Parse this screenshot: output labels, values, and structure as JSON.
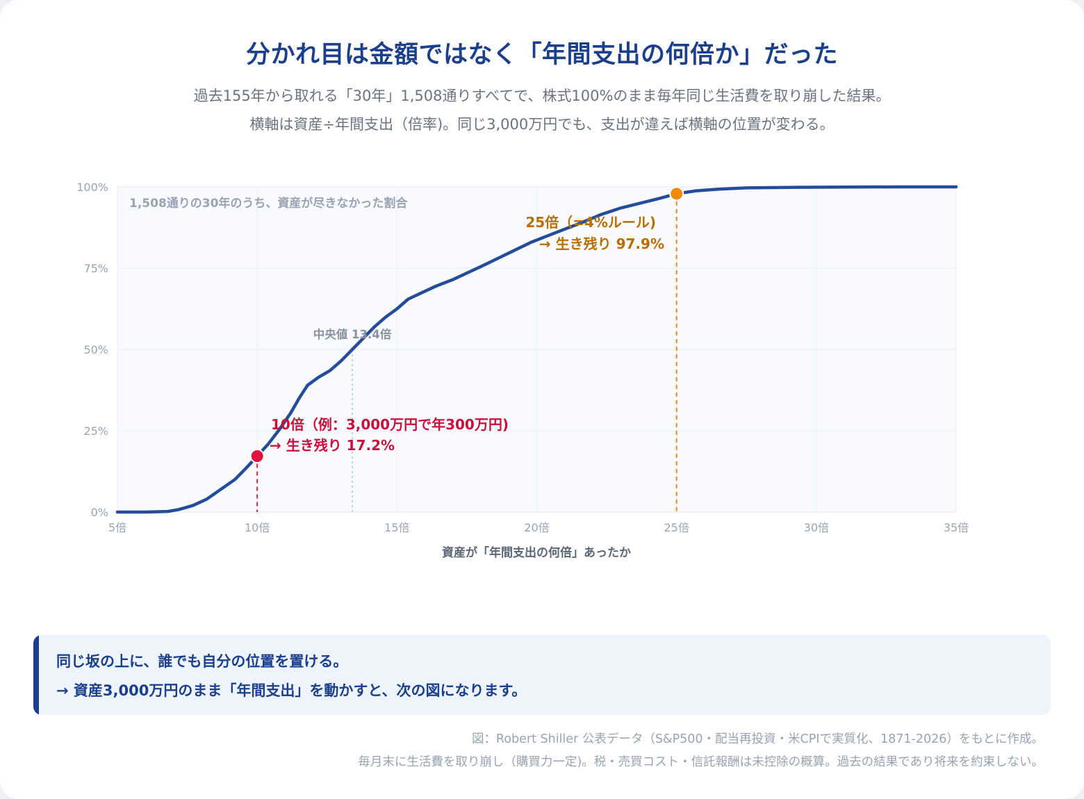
{
  "header": {
    "title": "分かれ目は金額ではなく「年間支出の何倍か」だった",
    "subtitle_line1": "過去155年から取れる「30年」1,508通りすべてで、株式100%のまま毎年同じ生活費を取り崩した結果。",
    "subtitle_line2": "横軸は資産÷年間支出（倍率)。同じ3,000万円でも、支出が違えば横軸の位置が変わる。"
  },
  "chart_data": {
    "type": "line",
    "title": "",
    "inner_label": "1,508通りの30年のうち、資産が尽きなかった割合",
    "xlabel": "資産が「年間支出の何倍」あったか",
    "ylabel": "",
    "xlim": [
      5,
      35
    ],
    "ylim": [
      0,
      100
    ],
    "x_ticks": [
      5,
      10,
      15,
      20,
      25,
      30,
      35
    ],
    "x_tick_labels": [
      "5倍",
      "10倍",
      "15倍",
      "20倍",
      "25倍",
      "30倍",
      "35倍"
    ],
    "y_ticks": [
      0,
      25,
      50,
      75,
      100
    ],
    "y_tick_labels": [
      "0%",
      "25%",
      "50%",
      "75%",
      "100%"
    ],
    "grid": true,
    "series": [
      {
        "color": "#244c9a",
        "points": [
          [
            5,
            0
          ],
          [
            6,
            0
          ],
          [
            6.8,
            0.2
          ],
          [
            7.2,
            0.8
          ],
          [
            7.7,
            2
          ],
          [
            8.2,
            4
          ],
          [
            8.7,
            7
          ],
          [
            9.2,
            10
          ],
          [
            9.6,
            13.5
          ],
          [
            10,
            17.2
          ],
          [
            10.4,
            21
          ],
          [
            10.8,
            25.5
          ],
          [
            11.2,
            30.5
          ],
          [
            11.5,
            35
          ],
          [
            11.8,
            39
          ],
          [
            12.2,
            41.5
          ],
          [
            12.6,
            43.5
          ],
          [
            13,
            46.5
          ],
          [
            13.4,
            50
          ],
          [
            13.8,
            53.5
          ],
          [
            14.2,
            57
          ],
          [
            14.6,
            60
          ],
          [
            15,
            62.5
          ],
          [
            15.4,
            65.5
          ],
          [
            15.9,
            67.5
          ],
          [
            16.4,
            69.5
          ],
          [
            17,
            71.5
          ],
          [
            17.5,
            73.5
          ],
          [
            18,
            75.5
          ],
          [
            18.6,
            78
          ],
          [
            19.2,
            80.5
          ],
          [
            19.8,
            83
          ],
          [
            20.4,
            85
          ],
          [
            21,
            87
          ],
          [
            21.6,
            89
          ],
          [
            22.3,
            91.5
          ],
          [
            23,
            93.5
          ],
          [
            23.7,
            95
          ],
          [
            24.4,
            96.5
          ],
          [
            25,
            97.9
          ],
          [
            25.7,
            98.8
          ],
          [
            26.5,
            99.3
          ],
          [
            27.5,
            99.7
          ],
          [
            29,
            99.85
          ],
          [
            31,
            99.95
          ],
          [
            33,
            100
          ],
          [
            35,
            100
          ]
        ]
      }
    ],
    "markers": [
      {
        "x": 10,
        "y": 17.2,
        "color": "#e0123f",
        "line_color": "#d8234a"
      },
      {
        "x": 25,
        "y": 97.9,
        "color": "#f08a0a",
        "line_color": "#ef8a1a"
      }
    ],
    "median_line": {
      "x": 13.4,
      "y": 50,
      "color": "#b8c0cc"
    },
    "annotations": [
      {
        "text": "中央値 13.4倍",
        "color": "#8892a2"
      },
      {
        "text": "10倍（例：3,000万円で年300万円)",
        "color": "#c8103a"
      },
      {
        "text": "→ 生き残り 17.2%",
        "color": "#c8103a"
      },
      {
        "text": "25倍（=4%ルール)",
        "color": "#b86e00"
      },
      {
        "text": "→ 生き残り 97.9%",
        "color": "#b86e00"
      }
    ]
  },
  "callout": {
    "line1": "同じ坂の上に、誰でも自分の位置を置ける。",
    "line2": "→ 資産3,000万円のまま「年間支出」を動かすと、次の図になります。"
  },
  "footnote": {
    "line1": "図：Robert Shiller 公表データ（S&P500・配当再投資・米CPIで実質化、1871-2026）をもとに作成。",
    "line2": "毎月末に生活費を取り崩し（購買力一定)。税・売買コスト・信託報酬は未控除の概算。過去の結果であり将来を約束しない。"
  }
}
